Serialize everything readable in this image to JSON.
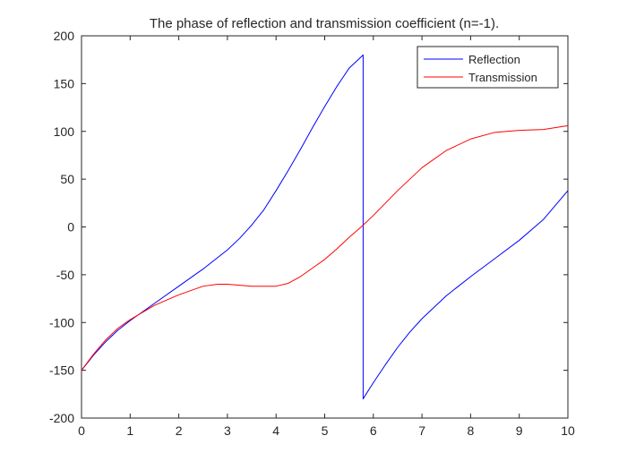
{
  "chart_data": {
    "type": "line",
    "title": "The phase of reflection and transmission coefficient (n=-1).",
    "xlabel": "",
    "ylabel": "",
    "xlim": [
      0,
      10
    ],
    "ylim": [
      -200,
      200
    ],
    "x_ticks": [
      0,
      1,
      2,
      3,
      4,
      5,
      6,
      7,
      8,
      9,
      10
    ],
    "y_ticks": [
      -200,
      -150,
      -100,
      -50,
      0,
      50,
      100,
      150,
      200
    ],
    "grid": false,
    "legend_position": "top-right",
    "series": [
      {
        "name": "Reflection",
        "color": "#0000ff",
        "x": [
          0,
          0.25,
          0.5,
          0.75,
          1,
          1.5,
          2,
          2.5,
          3,
          3.25,
          3.5,
          3.75,
          4,
          4.25,
          4.5,
          4.75,
          5,
          5.25,
          5.5,
          5.75,
          5.79,
          5.79,
          5.85,
          6,
          6.25,
          6.5,
          6.75,
          7,
          7.5,
          8,
          8.5,
          9,
          9.5,
          10
        ],
        "y": [
          -150,
          -134,
          -120,
          -108,
          -98,
          -80,
          -62,
          -44,
          -24,
          -12,
          2,
          18,
          38,
          59,
          81,
          104,
          126,
          147,
          166,
          178,
          180,
          -180,
          -175,
          -163,
          -144,
          -126,
          -110,
          -96,
          -72,
          -52,
          -33,
          -14,
          8,
          38
        ]
      },
      {
        "name": "Transmission",
        "color": "#ff0000",
        "x": [
          0,
          0.25,
          0.5,
          0.75,
          1,
          1.5,
          2,
          2.5,
          2.8,
          3,
          3.5,
          4,
          4.25,
          4.5,
          4.75,
          5,
          5.25,
          5.5,
          5.75,
          6,
          6.5,
          7,
          7.5,
          8,
          8.5,
          9,
          9.5,
          10
        ],
        "y": [
          -150,
          -133,
          -118,
          -106,
          -97,
          -82,
          -71,
          -62,
          -60,
          -60,
          -62,
          -62,
          -59,
          -52,
          -43,
          -34,
          -23,
          -11,
          0,
          12,
          38,
          62,
          80,
          92,
          99,
          101,
          102,
          106
        ]
      }
    ]
  }
}
